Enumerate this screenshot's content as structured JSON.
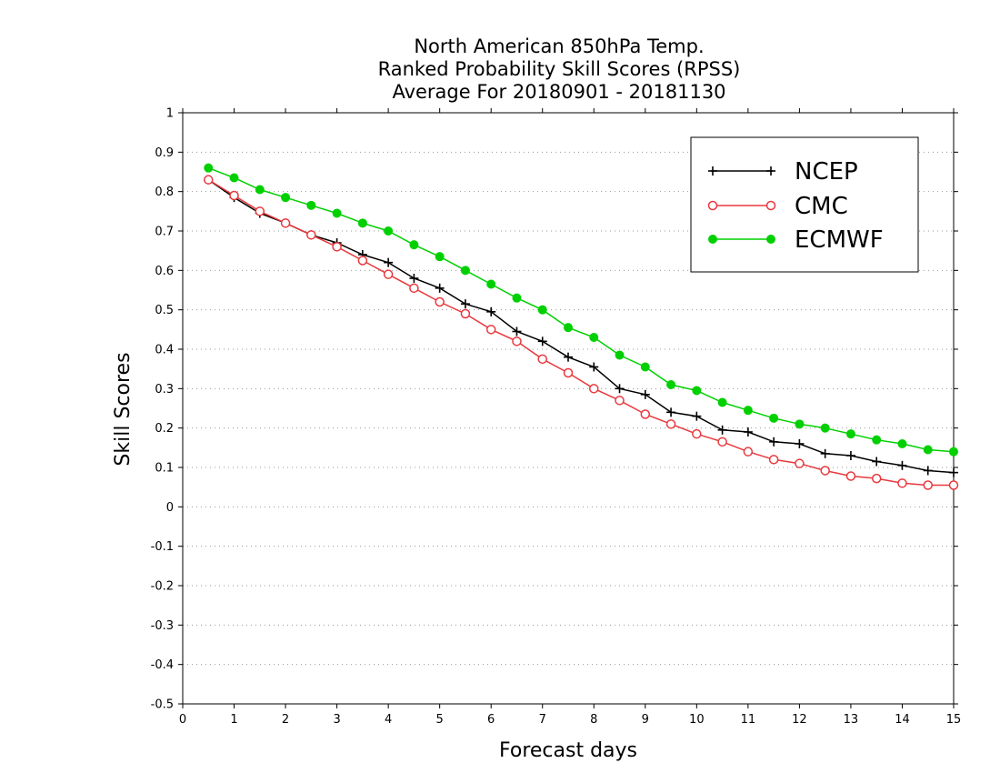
{
  "chart_data": {
    "type": "line",
    "title": [
      "North American 850hPa Temp.",
      "Ranked Probability Skill Scores (RPSS)",
      "Average For 20180901 - 20181130"
    ],
    "xlabel": "Forecast days",
    "ylabel": "Skill Scores",
    "xlim": [
      0,
      15
    ],
    "ylim": [
      -0.5,
      1
    ],
    "x_ticks": [
      "0",
      "1",
      "2",
      "3",
      "4",
      "5",
      "6",
      "7",
      "8",
      "9",
      "10",
      "11",
      "12",
      "13",
      "14",
      "15"
    ],
    "y_ticks": [
      "-0.5",
      "-0.4",
      "-0.3",
      "-0.2",
      "-0.1",
      "0",
      "0.1",
      "0.2",
      "0.3",
      "0.4",
      "0.5",
      "0.6",
      "0.7",
      "0.8",
      "0.9",
      "1"
    ],
    "grid": "horizontal dotted",
    "legend_position": "top-right",
    "x": [
      0.5,
      1,
      1.5,
      2,
      2.5,
      3,
      3.5,
      4,
      4.5,
      5,
      5.5,
      6,
      6.5,
      7,
      7.5,
      8,
      8.5,
      9,
      9.5,
      10,
      10.5,
      11,
      11.5,
      12,
      12.5,
      13,
      13.5,
      14,
      14.5,
      15
    ],
    "series": [
      {
        "name": "NCEP",
        "color": "#000000",
        "marker": "plus",
        "values": [
          0.83,
          0.785,
          0.745,
          0.72,
          0.69,
          0.67,
          0.64,
          0.62,
          0.58,
          0.555,
          0.515,
          0.495,
          0.445,
          0.42,
          0.38,
          0.355,
          0.3,
          0.285,
          0.24,
          0.23,
          0.195,
          0.19,
          0.165,
          0.16,
          0.135,
          0.13,
          0.115,
          0.105,
          0.092,
          0.087
        ]
      },
      {
        "name": "CMC",
        "color": "#e8383d",
        "marker": "open-circle",
        "values": [
          0.83,
          0.79,
          0.75,
          0.72,
          0.69,
          0.66,
          0.625,
          0.59,
          0.555,
          0.52,
          0.49,
          0.45,
          0.42,
          0.375,
          0.34,
          0.3,
          0.27,
          0.235,
          0.21,
          0.185,
          0.165,
          0.14,
          0.12,
          0.11,
          0.092,
          0.078,
          0.072,
          0.06,
          0.055,
          0.055
        ]
      },
      {
        "name": "ECMWF",
        "color": "#00d000",
        "marker": "filled-circle",
        "values": [
          0.86,
          0.835,
          0.805,
          0.785,
          0.765,
          0.745,
          0.72,
          0.7,
          0.665,
          0.635,
          0.6,
          0.565,
          0.53,
          0.5,
          0.455,
          0.43,
          0.385,
          0.355,
          0.31,
          0.295,
          0.265,
          0.245,
          0.225,
          0.21,
          0.2,
          0.185,
          0.17,
          0.16,
          0.145,
          0.14
        ]
      }
    ]
  }
}
